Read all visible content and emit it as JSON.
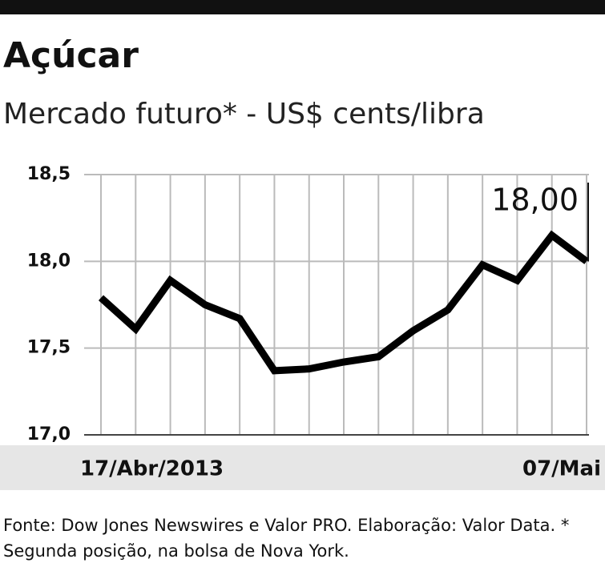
{
  "chart_data": {
    "type": "line",
    "title": "Açúcar",
    "subtitle": "Mercado futuro* - US$ cents/libra",
    "categories": [
      "17/Abr/2013",
      null,
      null,
      null,
      null,
      null,
      null,
      null,
      null,
      null,
      null,
      null,
      null,
      null,
      "07/Mai"
    ],
    "values": [
      17.79,
      17.61,
      17.89,
      17.75,
      17.67,
      17.37,
      17.38,
      17.42,
      17.45,
      17.6,
      17.72,
      17.98,
      17.89,
      18.15,
      18.0
    ],
    "value_labels": [
      null,
      null,
      null,
      null,
      null,
      null,
      null,
      null,
      null,
      null,
      null,
      null,
      null,
      null,
      "18,00"
    ],
    "color": "#000000",
    "ylim": [
      17.0,
      18.5
    ],
    "yticks": [
      {
        "value": 17.0,
        "label": "17,0"
      },
      {
        "value": 17.5,
        "label": "17,5"
      },
      {
        "value": 18.0,
        "label": "18,0"
      },
      {
        "value": 18.5,
        "label": "18,5"
      }
    ],
    "grid": true,
    "source": "Fonte: Dow Jones Newswires e Valor PRO. Elaboração: Valor Data. * Segunda posição, na bolsa de Nova York."
  }
}
